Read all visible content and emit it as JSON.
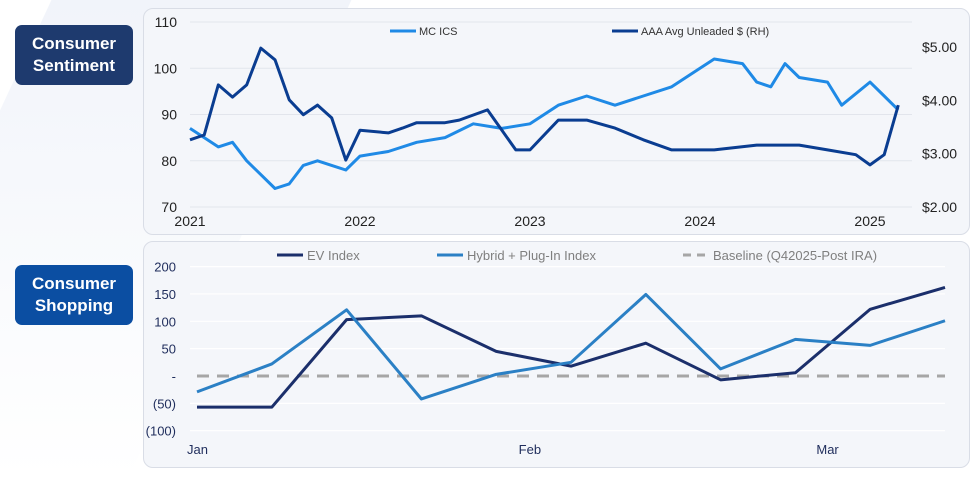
{
  "labels": {
    "top": "Consumer Sentiment",
    "bottom": "Consumer Shopping",
    "top_color": "#1e3a6e",
    "bottom_color": "#0b4ea2"
  },
  "chart_data": [
    {
      "type": "line",
      "x_ticks": [
        "2021",
        "2022",
        "2023",
        "2024",
        "2025"
      ],
      "y_left": {
        "ticks": [
          "70",
          "80",
          "90",
          "100",
          "110"
        ],
        "range": [
          70,
          110
        ]
      },
      "y_right": {
        "ticks": [
          "$2.00",
          "$3.00",
          "$4.00",
          "$5.00"
        ],
        "range": [
          2,
          5
        ]
      },
      "grid": true,
      "legend": "top",
      "series": [
        {
          "name": "MC ICS",
          "axis": "left",
          "color": "#1f8ae6",
          "points": [
            [
              "2021-01",
              87
            ],
            [
              "2021-02",
              85
            ],
            [
              "2021-03",
              83
            ],
            [
              "2021-04",
              84
            ],
            [
              "2021-05",
              80
            ],
            [
              "2021-06",
              77
            ],
            [
              "2021-07",
              74
            ],
            [
              "2021-08",
              75
            ],
            [
              "2021-09",
              79
            ],
            [
              "2021-10",
              80
            ],
            [
              "2021-11",
              79
            ],
            [
              "2021-12",
              78
            ],
            [
              "2022-01",
              81
            ],
            [
              "2022-03",
              82
            ],
            [
              "2022-05",
              84
            ],
            [
              "2022-07",
              85
            ],
            [
              "2022-09",
              88
            ],
            [
              "2022-11",
              87
            ],
            [
              "2023-01",
              88
            ],
            [
              "2023-03",
              92
            ],
            [
              "2023-05",
              94
            ],
            [
              "2023-07",
              92
            ],
            [
              "2023-09",
              94
            ],
            [
              "2023-11",
              96
            ],
            [
              "2024-01",
              100
            ],
            [
              "2024-02",
              102
            ],
            [
              "2024-04",
              101
            ],
            [
              "2024-05",
              97
            ],
            [
              "2024-06",
              96
            ],
            [
              "2024-07",
              101
            ],
            [
              "2024-08",
              98
            ],
            [
              "2024-10",
              97
            ],
            [
              "2024-11",
              92
            ],
            [
              "2025-01",
              97
            ],
            [
              "2025-02",
              94
            ],
            [
              "2025-03",
              91
            ]
          ]
        },
        {
          "name": "AAA Avg Unleaded $ (RH)",
          "axis": "right",
          "color": "#0a3d91",
          "points": [
            [
              "2021-01",
              3.26
            ],
            [
              "2021-02",
              3.35
            ],
            [
              "2021-03",
              4.29
            ],
            [
              "2021-04",
              4.06
            ],
            [
              "2021-05",
              4.29
            ],
            [
              "2021-06",
              4.98
            ],
            [
              "2021-07",
              4.76
            ],
            [
              "2021-08",
              4.01
            ],
            [
              "2021-09",
              3.73
            ],
            [
              "2021-10",
              3.91
            ],
            [
              "2021-11",
              3.67
            ],
            [
              "2021-12",
              2.88
            ],
            [
              "2022-01",
              3.44
            ],
            [
              "2022-03",
              3.39
            ],
            [
              "2022-04",
              3.48
            ],
            [
              "2022-05",
              3.58
            ],
            [
              "2022-07",
              3.58
            ],
            [
              "2022-08",
              3.63
            ],
            [
              "2022-10",
              3.82
            ],
            [
              "2022-12",
              3.07
            ],
            [
              "2023-01",
              3.07
            ],
            [
              "2023-03",
              3.63
            ],
            [
              "2023-05",
              3.63
            ],
            [
              "2023-07",
              3.48
            ],
            [
              "2023-09",
              3.26
            ],
            [
              "2023-11",
              3.07
            ],
            [
              "2024-02",
              3.07
            ],
            [
              "2024-05",
              3.16
            ],
            [
              "2024-08",
              3.16
            ],
            [
              "2024-10",
              3.07
            ],
            [
              "2024-12",
              2.98
            ],
            [
              "2025-01",
              2.79
            ],
            [
              "2025-02",
              2.98
            ],
            [
              "2025-03",
              3.91
            ]
          ]
        }
      ]
    },
    {
      "type": "line",
      "x_ticks": [
        {
          "label": "Jan",
          "at": 0
        },
        {
          "label": "Feb",
          "at": 4.45
        },
        {
          "label": "Mar",
          "at": 8.43
        }
      ],
      "y_ticks": [
        "(100)",
        "(50)",
        "-",
        "50",
        "100",
        "150",
        "200"
      ],
      "ylim": [
        -100,
        200
      ],
      "grid": true,
      "legend": "top",
      "series": [
        {
          "name": "EV Index",
          "color": "#1b2f6b",
          "values": [
            -57,
            -57,
            103,
            110,
            45,
            18,
            60,
            -7,
            6,
            122,
            162
          ]
        },
        {
          "name": "Hybrid + Plug-In Index",
          "color": "#2b80c5",
          "values": [
            -29,
            22,
            121,
            -42,
            3,
            25,
            149,
            13,
            67,
            56,
            101
          ]
        },
        {
          "name": "Baseline (Q42025-Post IRA)",
          "color": "#a6a6a6",
          "dashed": true,
          "values": [
            0,
            0,
            0,
            0,
            0,
            0,
            0,
            0,
            0,
            0,
            0
          ]
        }
      ]
    }
  ]
}
